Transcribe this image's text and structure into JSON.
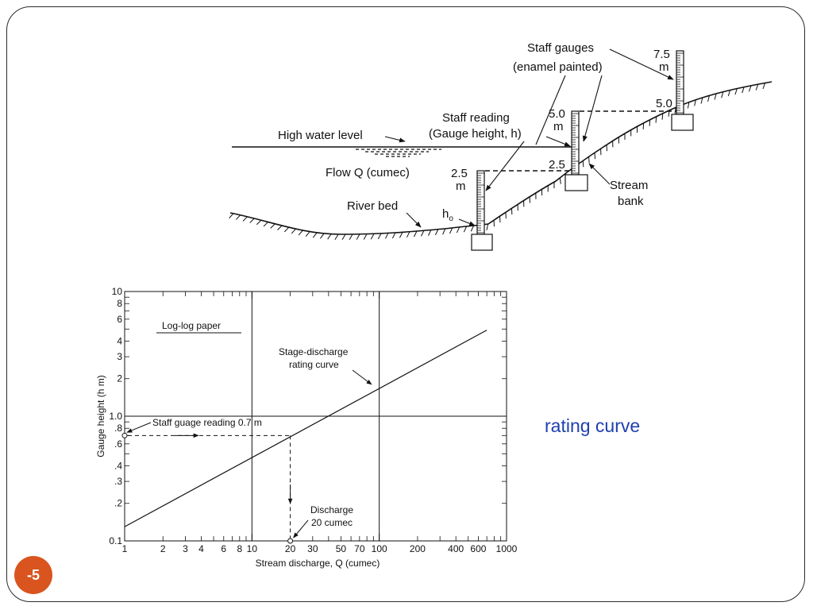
{
  "slide": {
    "caption": "rating curve",
    "number": "-5",
    "frame_color": "#2b2b2b",
    "caption_color": "#1f3fb0",
    "badge_color": "#d9541e"
  },
  "cross_section": {
    "high_water_level": "High water level",
    "flow": "Flow Q (cumec)",
    "river_bed": "River bed",
    "h0_main": "h",
    "h0_sub": "o",
    "staff_reading_line1": "Staff reading",
    "staff_reading_line2": "(Gauge height, h)",
    "staff_gauges_line1": "Staff gauges",
    "staff_gauges_line2": "(enamel painted)",
    "stream_bank_line1": "Stream",
    "stream_bank_line2": "bank",
    "gauge1_top_value": "2.5",
    "gauge1_top_unit": "m",
    "gauge2_top_value": "5.0",
    "gauge2_top_unit": "m",
    "gauge2_level": "2.5",
    "gauge3_top_value": "7.5",
    "gauge3_top_unit": "m",
    "gauge3_level": "5.0"
  },
  "rating_chart": {
    "paper_label": "Log-log paper",
    "curve_label_line1": "Stage-discharge",
    "curve_label_line2": "rating curve",
    "reading_label": "Staff guage reading 0.7 m",
    "discharge_label_line1": "Discharge",
    "discharge_label_line2": "20 cumec",
    "x_label": "Stream discharge, Q (cumec)",
    "y_label": "Gauge height (h m)"
  },
  "chart_data": {
    "type": "line",
    "title": "",
    "xlabel": "Stream discharge, Q (cumec)",
    "ylabel": "Gauge height (h m)",
    "x_scale": "log",
    "y_scale": "log",
    "xlim": [
      1,
      1000
    ],
    "ylim": [
      0.1,
      10
    ],
    "x_tick_labels": [
      "1",
      "2",
      "3",
      "4",
      "6",
      "8",
      "10",
      "20",
      "30",
      "50",
      "70",
      "100",
      "200",
      "400",
      "600",
      "1000"
    ],
    "x_tick_values": [
      1,
      2,
      3,
      4,
      6,
      8,
      10,
      20,
      30,
      50,
      70,
      100,
      200,
      400,
      600,
      1000
    ],
    "y_tick_labels": [
      "0.1",
      ".2",
      ".3",
      ".4",
      ".6",
      ".8",
      "1.0",
      "2",
      "3",
      "4",
      "6",
      "8",
      "10"
    ],
    "y_tick_values": [
      0.1,
      0.2,
      0.3,
      0.4,
      0.6,
      0.8,
      1.0,
      2,
      3,
      4,
      6,
      8,
      10
    ],
    "series": [
      {
        "x": [
          1,
          700
        ],
        "y": [
          0.13,
          4.9
        ]
      }
    ],
    "annotations": [
      {
        "text": "Staff guage reading 0.7 m",
        "x": 1,
        "y": 0.7
      },
      {
        "text": "Discharge 20 cumec",
        "x": 20,
        "y": 0.1
      }
    ],
    "grid": "major decades only"
  }
}
